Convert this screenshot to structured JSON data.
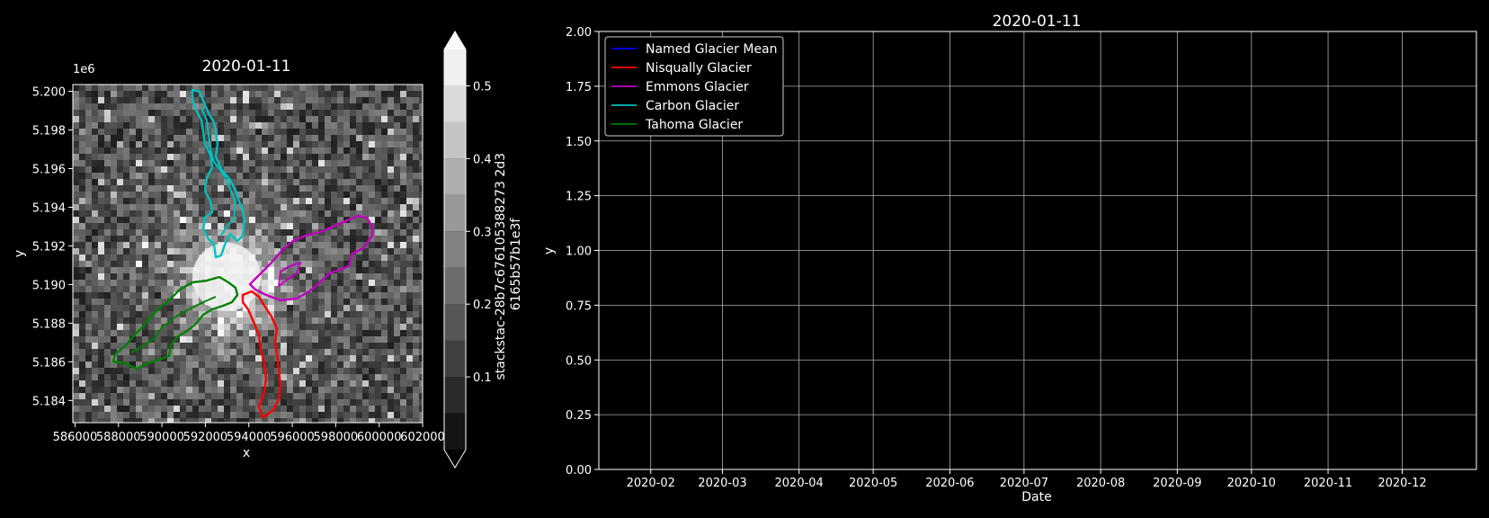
{
  "figure": {
    "background": "#000000",
    "foreground": "#ffffff"
  },
  "chart_data": [
    {
      "type": "heatmap",
      "title": "2020-01-11",
      "xlabel": "x",
      "ylabel": "y",
      "y_multiplier_label": "1e6",
      "x_ticks": [
        "586000",
        "588000",
        "590000",
        "592000",
        "594000",
        "596000",
        "598000",
        "600000",
        "602000"
      ],
      "x_tick_values": [
        586000,
        588000,
        590000,
        592000,
        594000,
        596000,
        598000,
        600000,
        602000
      ],
      "y_ticks": [
        "5.184",
        "5.186",
        "5.188",
        "5.190",
        "5.192",
        "5.194",
        "5.196",
        "5.198",
        "5.200"
      ],
      "y_tick_values": [
        5.184,
        5.186,
        5.188,
        5.19,
        5.192,
        5.194,
        5.196,
        5.198,
        5.2
      ],
      "xlim": [
        585900,
        602000
      ],
      "ylim": [
        5.18285,
        5.20035
      ],
      "colormap": "gray",
      "colorbar": {
        "label_lines": [
          "stackstac-28b7c676105388273 2d3",
          "6165b57b1e3f"
        ],
        "ticks": [
          "0.1",
          "0.2",
          "0.3",
          "0.4",
          "0.5"
        ],
        "tick_values": [
          0.1,
          0.2,
          0.3,
          0.4,
          0.5
        ],
        "range": [
          0.0,
          0.55
        ],
        "levels": 11,
        "extend": "both"
      },
      "outlines": [
        {
          "name": "Nisqually Glacier",
          "color": "#ff0000"
        },
        {
          "name": "Emmons Glacier",
          "color": "#bf00bf"
        },
        {
          "name": "Carbon Glacier",
          "color": "#00bfbf"
        },
        {
          "name": "Tahoma Glacier",
          "color": "#008000"
        }
      ]
    },
    {
      "type": "line",
      "title": "2020-01-11",
      "xlabel": "Date",
      "ylabel": "y",
      "x_ticks": [
        "2020-02",
        "2020-03",
        "2020-04",
        "2020-05",
        "2020-06",
        "2020-07",
        "2020-08",
        "2020-09",
        "2020-10",
        "2020-11",
        "2020-12"
      ],
      "xlim": [
        "2020-01-11",
        "2020-12-31"
      ],
      "y_ticks": [
        "0.00",
        "0.25",
        "0.50",
        "0.75",
        "1.00",
        "1.25",
        "1.50",
        "1.75",
        "2.00"
      ],
      "ylim": [
        0,
        2
      ],
      "grid": true,
      "legend_position": "upper-left",
      "series": [
        {
          "name": "Named Glacier Mean",
          "color": "#0000ff",
          "values": []
        },
        {
          "name": "Nisqually Glacier",
          "color": "#ff0000",
          "values": []
        },
        {
          "name": "Emmons Glacier",
          "color": "#bf00bf",
          "values": []
        },
        {
          "name": "Carbon Glacier",
          "color": "#00bfbf",
          "values": []
        },
        {
          "name": "Tahoma Glacier",
          "color": "#008000",
          "values": []
        }
      ]
    }
  ]
}
